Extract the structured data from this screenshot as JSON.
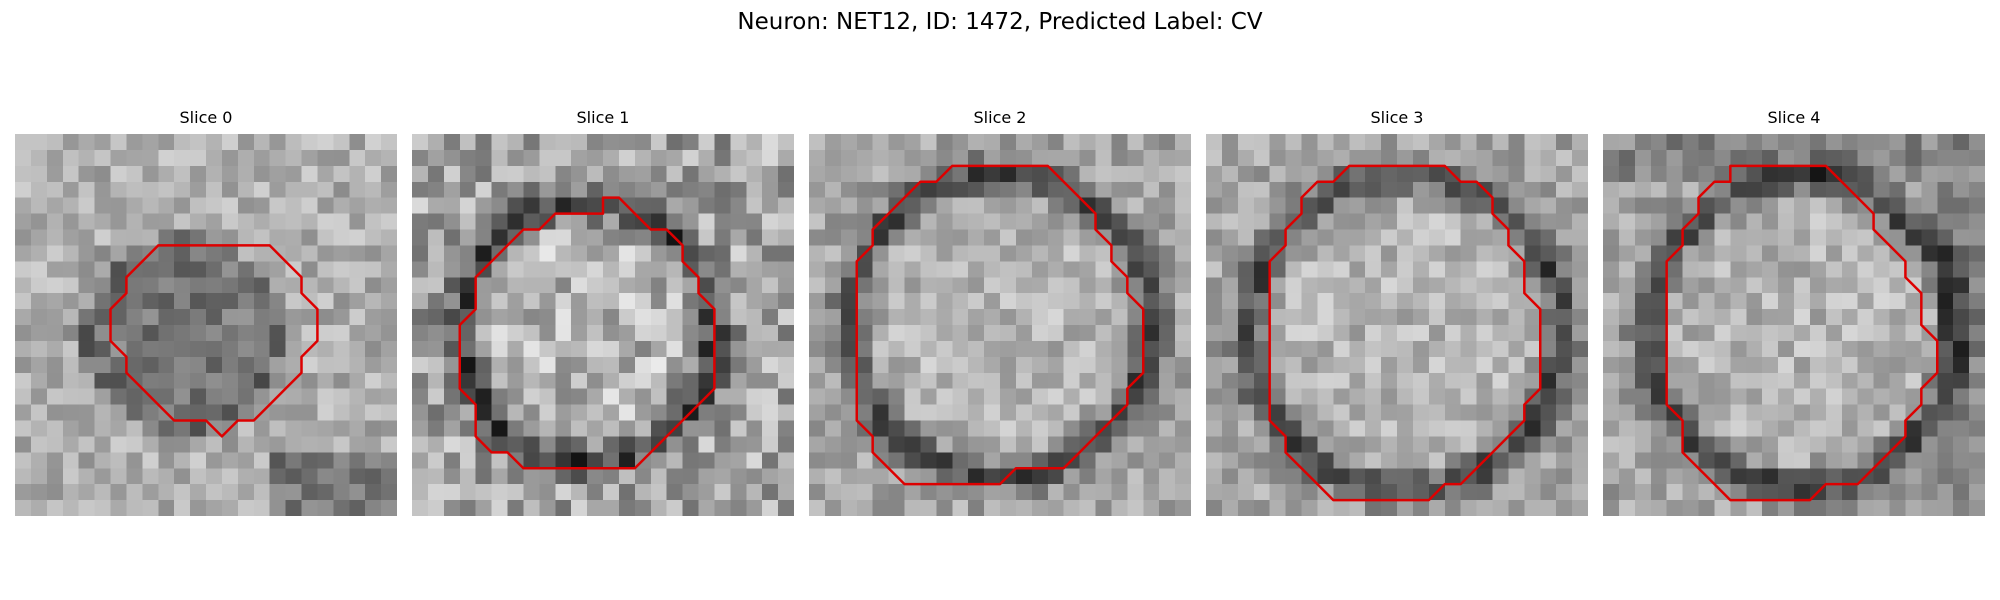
{
  "figure": {
    "title": "Neuron: NET12, ID: 1472, Predicted Label: CV",
    "contour_color": "#dd0000"
  },
  "panels": [
    {
      "label": "Slice 0",
      "contour": [
        [
          13,
          7
        ],
        [
          16,
          7
        ],
        [
          17,
          8
        ],
        [
          18,
          9
        ],
        [
          18,
          10
        ],
        [
          19,
          11
        ],
        [
          19,
          13
        ],
        [
          18,
          14
        ],
        [
          18,
          15
        ],
        [
          17,
          16
        ],
        [
          16,
          17
        ],
        [
          15,
          18
        ],
        [
          14,
          18
        ],
        [
          13,
          19
        ],
        [
          12,
          18
        ],
        [
          11,
          18
        ],
        [
          10,
          18
        ],
        [
          9,
          17
        ],
        [
          8,
          16
        ],
        [
          7,
          15
        ],
        [
          7,
          14
        ],
        [
          6,
          13
        ],
        [
          6,
          11
        ],
        [
          7,
          10
        ],
        [
          7,
          9
        ],
        [
          8,
          8
        ],
        [
          9,
          7
        ],
        [
          10,
          7
        ]
      ]
    },
    {
      "label": "Slice 1",
      "contour": [
        [
          10,
          5
        ],
        [
          11,
          5
        ],
        [
          12,
          5
        ],
        [
          12,
          4
        ],
        [
          13,
          4
        ],
        [
          14,
          5
        ],
        [
          15,
          6
        ],
        [
          16,
          6
        ],
        [
          17,
          7
        ],
        [
          17,
          8
        ],
        [
          18,
          9
        ],
        [
          18,
          10
        ],
        [
          19,
          11
        ],
        [
          19,
          16
        ],
        [
          18,
          17
        ],
        [
          17,
          18
        ],
        [
          16,
          19
        ],
        [
          15,
          20
        ],
        [
          14,
          21
        ],
        [
          13,
          21
        ],
        [
          7,
          21
        ],
        [
          6,
          20
        ],
        [
          5,
          20
        ],
        [
          4,
          19
        ],
        [
          4,
          17
        ],
        [
          3,
          16
        ],
        [
          3,
          12
        ],
        [
          4,
          11
        ],
        [
          4,
          9
        ],
        [
          5,
          8
        ],
        [
          6,
          7
        ],
        [
          7,
          6
        ],
        [
          8,
          6
        ],
        [
          9,
          5
        ]
      ]
    },
    {
      "label": "Slice 2",
      "contour": [
        [
          7,
          3
        ],
        [
          8,
          3
        ],
        [
          9,
          2
        ],
        [
          15,
          2
        ],
        [
          16,
          3
        ],
        [
          17,
          4
        ],
        [
          18,
          5
        ],
        [
          18,
          6
        ],
        [
          19,
          7
        ],
        [
          19,
          8
        ],
        [
          20,
          9
        ],
        [
          20,
          10
        ],
        [
          21,
          11
        ],
        [
          21,
          15
        ],
        [
          20,
          16
        ],
        [
          20,
          17
        ],
        [
          19,
          18
        ],
        [
          18,
          19
        ],
        [
          17,
          20
        ],
        [
          16,
          21
        ],
        [
          15,
          21
        ],
        [
          14,
          21
        ],
        [
          13,
          21
        ],
        [
          12,
          22
        ],
        [
          11,
          22
        ],
        [
          10,
          22
        ],
        [
          9,
          22
        ],
        [
          6,
          22
        ],
        [
          5,
          21
        ],
        [
          4,
          20
        ],
        [
          4,
          19
        ],
        [
          3,
          18
        ],
        [
          3,
          8
        ],
        [
          4,
          7
        ],
        [
          4,
          6
        ],
        [
          5,
          5
        ],
        [
          6,
          4
        ]
      ]
    },
    {
      "label": "Slice 3",
      "contour": [
        [
          6,
          4
        ],
        [
          7,
          3
        ],
        [
          8,
          3
        ],
        [
          9,
          2
        ],
        [
          15,
          2
        ],
        [
          16,
          3
        ],
        [
          17,
          3
        ],
        [
          18,
          4
        ],
        [
          18,
          5
        ],
        [
          19,
          6
        ],
        [
          19,
          7
        ],
        [
          20,
          8
        ],
        [
          20,
          9
        ],
        [
          20,
          10
        ],
        [
          21,
          11
        ],
        [
          21,
          13
        ],
        [
          21,
          16
        ],
        [
          20,
          17
        ],
        [
          20,
          18
        ],
        [
          19,
          19
        ],
        [
          18,
          20
        ],
        [
          17,
          21
        ],
        [
          16,
          22
        ],
        [
          15,
          22
        ],
        [
          14,
          23
        ],
        [
          13,
          23
        ],
        [
          12,
          23
        ],
        [
          11,
          23
        ],
        [
          9,
          23
        ],
        [
          8,
          23
        ],
        [
          7,
          22
        ],
        [
          6,
          21
        ],
        [
          5,
          20
        ],
        [
          5,
          19
        ],
        [
          4,
          18
        ],
        [
          4,
          17
        ],
        [
          4,
          16
        ],
        [
          4,
          8
        ],
        [
          5,
          7
        ],
        [
          5,
          6
        ],
        [
          6,
          5
        ]
      ]
    },
    {
      "label": "Slice 4",
      "contour": [
        [
          6,
          4
        ],
        [
          7,
          3
        ],
        [
          8,
          3
        ],
        [
          8,
          2
        ],
        [
          9,
          2
        ],
        [
          14,
          2
        ],
        [
          15,
          3
        ],
        [
          16,
          4
        ],
        [
          17,
          5
        ],
        [
          17,
          6
        ],
        [
          18,
          7
        ],
        [
          19,
          8
        ],
        [
          19,
          9
        ],
        [
          20,
          10
        ],
        [
          20,
          11
        ],
        [
          20,
          12
        ],
        [
          21,
          13
        ],
        [
          21,
          14
        ],
        [
          21,
          15
        ],
        [
          20,
          16
        ],
        [
          20,
          17
        ],
        [
          19,
          18
        ],
        [
          19,
          19
        ],
        [
          18,
          20
        ],
        [
          17,
          21
        ],
        [
          16,
          22
        ],
        [
          15,
          22
        ],
        [
          14,
          22
        ],
        [
          13,
          23
        ],
        [
          12,
          23
        ],
        [
          11,
          23
        ],
        [
          10,
          23
        ],
        [
          9,
          23
        ],
        [
          8,
          23
        ],
        [
          7,
          22
        ],
        [
          6,
          21
        ],
        [
          5,
          20
        ],
        [
          5,
          18
        ],
        [
          4,
          17
        ],
        [
          4,
          14
        ],
        [
          4,
          8
        ],
        [
          5,
          7
        ],
        [
          5,
          6
        ],
        [
          6,
          5
        ]
      ]
    }
  ]
}
